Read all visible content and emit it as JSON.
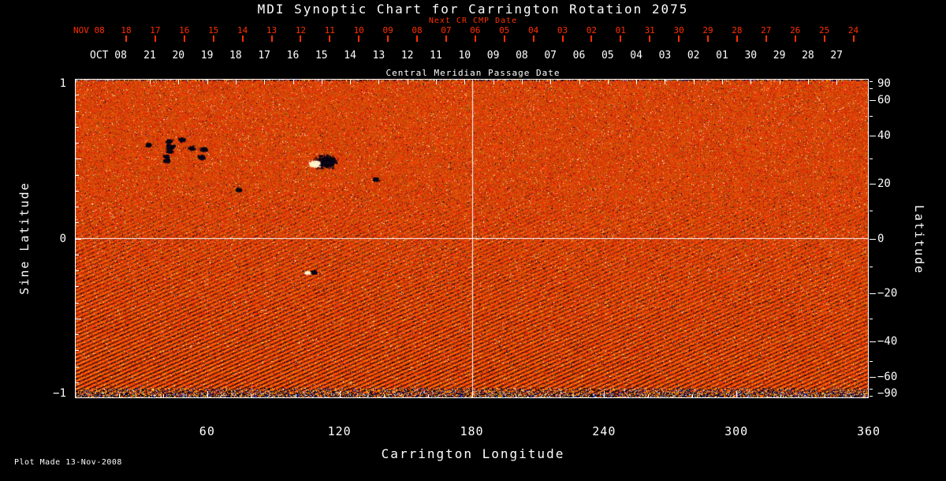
{
  "title": "MDI Synoptic Chart for Carrington Rotation 2075",
  "footer": "Plot Made 13-Nov-2008",
  "chart_data": {
    "type": "heatmap",
    "title": "MDI Synoptic Chart for Carrington Rotation 2075",
    "subtitle": "Solar photospheric magnetic field synoptic map from MDI magnetograms; granular orange-red field with dark active-region patches and high-contrast noise bands at the poles",
    "xlabel": "Carrington Longitude",
    "ylabel_left": "Sine Latitude",
    "ylabel_right": "Latitude",
    "xlim": [
      0,
      360
    ],
    "ylim": [
      -1,
      1
    ],
    "x_ticks": [
      60,
      120,
      180,
      240,
      300,
      360
    ],
    "left_ticks": [
      "1",
      "0",
      "-1"
    ],
    "right_ticks": [
      90,
      60,
      40,
      20,
      0,
      -20,
      -40,
      -60,
      -90
    ],
    "grid_lines": {
      "vertical_at_longitude": 180,
      "horizontal_at_sine_latitude": 0
    },
    "top_axis_red": {
      "label": "Next CR CMP Date",
      "month_label": "NOV 08",
      "ticks": [
        "18",
        "17",
        "16",
        "15",
        "14",
        "13",
        "12",
        "11",
        "10",
        "09",
        "08",
        "07",
        "06",
        "05",
        "04",
        "03",
        "02",
        "01",
        "31",
        "30",
        "29",
        "28",
        "27",
        "26",
        "25",
        "24"
      ]
    },
    "top_axis_white": {
      "label": "Central Meridian Passage Date",
      "month_label": "OCT 08",
      "ticks": [
        "21",
        "20",
        "19",
        "18",
        "17",
        "16",
        "15",
        "14",
        "13",
        "12",
        "11",
        "10",
        "09",
        "08",
        "07",
        "06",
        "05",
        "04",
        "03",
        "02",
        "01",
        "30",
        "29",
        "28",
        "27"
      ]
    },
    "active_regions": [
      {
        "lon": 50,
        "lat": 34,
        "polarity": "negative",
        "size": "large-scattered"
      },
      {
        "lon": 113,
        "lat": 29,
        "polarity": "bipolar",
        "size": "large"
      },
      {
        "lon": 107,
        "lat": -12,
        "polarity": "bipolar",
        "size": "small"
      },
      {
        "lon": 32,
        "lat": 36,
        "polarity": "negative",
        "size": "small"
      },
      {
        "lon": 40,
        "lat": 31,
        "polarity": "negative",
        "size": "small"
      },
      {
        "lon": 73,
        "lat": 18,
        "polarity": "negative",
        "size": "small"
      },
      {
        "lon": 135,
        "lat": 22,
        "polarity": "negative",
        "size": "small"
      }
    ],
    "colors": {
      "background": "#000000",
      "frame": "#ffffff",
      "red_text": "#ff2f00",
      "map_base_orange": "#e64400",
      "bright_flux": "#ffe8a8",
      "dark_flux": "#0a0014"
    },
    "legend": "none"
  }
}
